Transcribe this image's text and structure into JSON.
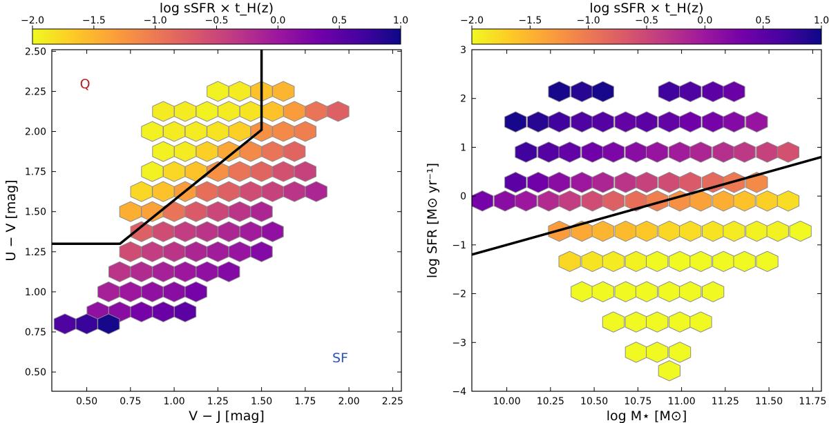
{
  "colormap": [
    "#f0f921",
    "#fdca26",
    "#fb9f3a",
    "#ed7953",
    "#d8576b",
    "#bd3786",
    "#9c179e",
    "#7201a8",
    "#46039f",
    "#0d0887"
  ],
  "chart_data": [
    {
      "type": "heatmap",
      "subtype": "hexbin",
      "id": "uvj",
      "title": "",
      "xlabel": "V − J [mag]",
      "ylabel": "U − V [mag]",
      "xlim": [
        0.3,
        2.3
      ],
      "ylim": [
        0.38,
        2.51
      ],
      "xticks": [
        0.5,
        0.75,
        1.0,
        1.25,
        1.5,
        1.75,
        2.0,
        2.25
      ],
      "xtick_labels": [
        "0.50",
        "0.75",
        "1.00",
        "1.25",
        "1.50",
        "1.75",
        "2.00",
        "2.25"
      ],
      "yticks": [
        0.5,
        0.75,
        1.0,
        1.25,
        1.5,
        1.75,
        2.0,
        2.25,
        2.5
      ],
      "ytick_labels": [
        "0.50",
        "0.75",
        "1.00",
        "1.25",
        "1.50",
        "1.75",
        "2.00",
        "2.25",
        "2.50"
      ],
      "colorbar": {
        "label": "log sSFR × t_H(z)",
        "range": [
          -2.0,
          1.0
        ],
        "ticks": [
          -2.0,
          -1.5,
          -1.0,
          -0.5,
          0.0,
          0.5,
          1.0
        ],
        "tick_labels": [
          "−2.0",
          "−1.5",
          "−1.0",
          "−0.5",
          "0.0",
          "0.5",
          "1.0"
        ]
      },
      "hex_size": [
        0.0714,
        0.0625
      ],
      "annotations": [
        {
          "text": "Q",
          "x": 0.49,
          "y": 2.27,
          "color": "#b22222"
        },
        {
          "text": "SF",
          "x": 1.95,
          "y": 0.56,
          "color": "#2a52be"
        }
      ],
      "boundary": {
        "x": [
          0.3,
          0.69,
          1.5,
          1.5
        ],
        "y": [
          1.3,
          1.3,
          2.01,
          2.51
        ]
      },
      "hexbins": [
        {
          "x": 1.25,
          "y": 2.25,
          "v": -1.95
        },
        {
          "x": 1.375,
          "y": 2.25,
          "v": -1.9
        },
        {
          "x": 1.5,
          "y": 2.25,
          "v": -1.6
        },
        {
          "x": 1.625,
          "y": 2.25,
          "v": -1.5
        },
        {
          "x": 0.938,
          "y": 2.125,
          "v": -1.9
        },
        {
          "x": 1.063,
          "y": 2.125,
          "v": -1.9
        },
        {
          "x": 1.188,
          "y": 2.125,
          "v": -1.95
        },
        {
          "x": 1.313,
          "y": 2.125,
          "v": -1.9
        },
        {
          "x": 1.438,
          "y": 2.125,
          "v": -1.85
        },
        {
          "x": 1.563,
          "y": 2.125,
          "v": -1.6
        },
        {
          "x": 1.688,
          "y": 2.125,
          "v": -1.3
        },
        {
          "x": 1.813,
          "y": 2.125,
          "v": -0.95
        },
        {
          "x": 1.938,
          "y": 2.125,
          "v": -0.75
        },
        {
          "x": 0.875,
          "y": 2.0,
          "v": -1.95
        },
        {
          "x": 1.0,
          "y": 2.0,
          "v": -1.9
        },
        {
          "x": 1.125,
          "y": 2.0,
          "v": -1.9
        },
        {
          "x": 1.25,
          "y": 2.0,
          "v": -1.85
        },
        {
          "x": 1.375,
          "y": 2.0,
          "v": -1.7
        },
        {
          "x": 1.5,
          "y": 2.0,
          "v": -1.2
        },
        {
          "x": 1.625,
          "y": 2.0,
          "v": -1.15
        },
        {
          "x": 1.75,
          "y": 2.0,
          "v": -1.05
        },
        {
          "x": 0.938,
          "y": 1.875,
          "v": -1.95
        },
        {
          "x": 1.063,
          "y": 1.875,
          "v": -1.9
        },
        {
          "x": 1.188,
          "y": 1.875,
          "v": -1.7
        },
        {
          "x": 1.313,
          "y": 1.875,
          "v": -1.4
        },
        {
          "x": 1.438,
          "y": 1.875,
          "v": -1.15
        },
        {
          "x": 1.563,
          "y": 1.875,
          "v": -0.95
        },
        {
          "x": 1.688,
          "y": 1.875,
          "v": -0.8
        },
        {
          "x": 0.875,
          "y": 1.75,
          "v": -1.95
        },
        {
          "x": 1.0,
          "y": 1.75,
          "v": -1.75
        },
        {
          "x": 1.125,
          "y": 1.75,
          "v": -1.6
        },
        {
          "x": 1.25,
          "y": 1.75,
          "v": -1.2
        },
        {
          "x": 1.375,
          "y": 1.75,
          "v": -0.95
        },
        {
          "x": 1.5,
          "y": 1.75,
          "v": -0.8
        },
        {
          "x": 1.625,
          "y": 1.75,
          "v": -0.6
        },
        {
          "x": 1.75,
          "y": 1.75,
          "v": -0.45
        },
        {
          "x": 0.813,
          "y": 1.625,
          "v": -1.75
        },
        {
          "x": 0.938,
          "y": 1.625,
          "v": -1.6
        },
        {
          "x": 1.063,
          "y": 1.625,
          "v": -1.3
        },
        {
          "x": 1.188,
          "y": 1.625,
          "v": -0.9
        },
        {
          "x": 1.313,
          "y": 1.625,
          "v": -0.75
        },
        {
          "x": 1.438,
          "y": 1.625,
          "v": -0.55
        },
        {
          "x": 1.563,
          "y": 1.625,
          "v": -0.45
        },
        {
          "x": 1.688,
          "y": 1.625,
          "v": -0.3
        },
        {
          "x": 1.813,
          "y": 1.625,
          "v": -0.15
        },
        {
          "x": 0.75,
          "y": 1.5,
          "v": -1.45
        },
        {
          "x": 0.875,
          "y": 1.5,
          "v": -1.35
        },
        {
          "x": 1.0,
          "y": 1.5,
          "v": -0.95
        },
        {
          "x": 1.125,
          "y": 1.5,
          "v": -0.7
        },
        {
          "x": 1.25,
          "y": 1.5,
          "v": -0.5
        },
        {
          "x": 1.375,
          "y": 1.5,
          "v": -0.3
        },
        {
          "x": 1.5,
          "y": 1.5,
          "v": -0.15
        },
        {
          "x": 0.813,
          "y": 1.375,
          "v": -0.75
        },
        {
          "x": 0.938,
          "y": 1.375,
          "v": -0.55
        },
        {
          "x": 1.063,
          "y": 1.375,
          "v": -0.4
        },
        {
          "x": 1.188,
          "y": 1.375,
          "v": -0.3
        },
        {
          "x": 1.313,
          "y": 1.375,
          "v": -0.15
        },
        {
          "x": 1.438,
          "y": 1.375,
          "v": -0.05
        },
        {
          "x": 1.563,
          "y": 1.375,
          "v": 0.1
        },
        {
          "x": 0.75,
          "y": 1.25,
          "v": -0.55
        },
        {
          "x": 0.875,
          "y": 1.25,
          "v": -0.4
        },
        {
          "x": 1.0,
          "y": 1.25,
          "v": -0.3
        },
        {
          "x": 1.125,
          "y": 1.25,
          "v": -0.15
        },
        {
          "x": 1.25,
          "y": 1.25,
          "v": -0.05
        },
        {
          "x": 1.375,
          "y": 1.25,
          "v": 0.05
        },
        {
          "x": 1.5,
          "y": 1.25,
          "v": 0.2
        },
        {
          "x": 0.688,
          "y": 1.125,
          "v": -0.3
        },
        {
          "x": 0.813,
          "y": 1.125,
          "v": -0.2
        },
        {
          "x": 0.938,
          "y": 1.125,
          "v": -0.1
        },
        {
          "x": 1.063,
          "y": 1.125,
          "v": 0.0
        },
        {
          "x": 1.188,
          "y": 1.125,
          "v": 0.1
        },
        {
          "x": 1.313,
          "y": 1.125,
          "v": 0.2
        },
        {
          "x": 0.625,
          "y": 1.0,
          "v": -0.1
        },
        {
          "x": 0.75,
          "y": 1.0,
          "v": 0.0
        },
        {
          "x": 0.875,
          "y": 1.0,
          "v": 0.1
        },
        {
          "x": 1.0,
          "y": 1.0,
          "v": 0.15
        },
        {
          "x": 1.125,
          "y": 1.0,
          "v": 0.3
        },
        {
          "x": 0.563,
          "y": 0.875,
          "v": 0.1
        },
        {
          "x": 0.688,
          "y": 0.875,
          "v": 0.15
        },
        {
          "x": 0.813,
          "y": 0.875,
          "v": 0.3
        },
        {
          "x": 0.938,
          "y": 0.875,
          "v": 0.4
        },
        {
          "x": 1.063,
          "y": 0.875,
          "v": 0.5
        },
        {
          "x": 0.375,
          "y": 0.8,
          "v": 0.6
        },
        {
          "x": 0.5,
          "y": 0.8,
          "v": 0.75
        },
        {
          "x": 0.625,
          "y": 0.8,
          "v": 0.95
        }
      ]
    },
    {
      "type": "heatmap",
      "subtype": "hexbin",
      "id": "sfms",
      "title": "",
      "xlabel": "log M⋆ [M⊙]",
      "ylabel": "log SFR [M⊙ yr⁻¹]",
      "xlim": [
        9.8,
        11.8
      ],
      "ylim": [
        -4.0,
        3.0
      ],
      "xticks": [
        10.0,
        10.25,
        10.5,
        10.75,
        11.0,
        11.25,
        11.5,
        11.75
      ],
      "xtick_labels": [
        "10.00",
        "10.25",
        "10.50",
        "10.75",
        "11.00",
        "11.25",
        "11.50",
        "11.75"
      ],
      "yticks": [
        -4,
        -3,
        -2,
        -1,
        0,
        1,
        2,
        3
      ],
      "ytick_labels": [
        "−4",
        "−3",
        "−2",
        "−1",
        "0",
        "1",
        "2",
        "3"
      ],
      "colorbar": {
        "label": "log sSFR × t_H(z)",
        "range": [
          -2.0,
          1.0
        ],
        "ticks": [
          -2.0,
          -1.5,
          -1.0,
          -0.5,
          0.0,
          0.5,
          1.0
        ],
        "tick_labels": [
          "−2.0",
          "−1.5",
          "−1.0",
          "−0.5",
          "0.0",
          "0.5",
          "1.0"
        ]
      },
      "hex_size": [
        0.0714,
        0.2083
      ],
      "annotations": [],
      "boundary": {
        "x": [
          9.8,
          11.8
        ],
        "y": [
          -1.2,
          0.8
        ]
      },
      "hexbins": [
        {
          "x": 10.3,
          "y": 2.14,
          "v": 0.95
        },
        {
          "x": 10.43,
          "y": 2.14,
          "v": 0.85
        },
        {
          "x": 10.55,
          "y": 2.14,
          "v": 0.95
        },
        {
          "x": 10.93,
          "y": 2.14,
          "v": 0.7
        },
        {
          "x": 11.05,
          "y": 2.14,
          "v": 0.6
        },
        {
          "x": 11.18,
          "y": 2.14,
          "v": 0.5
        },
        {
          "x": 11.3,
          "y": 2.14,
          "v": 0.4
        },
        {
          "x": 10.05,
          "y": 1.52,
          "v": 0.95
        },
        {
          "x": 10.18,
          "y": 1.52,
          "v": 0.85
        },
        {
          "x": 10.3,
          "y": 1.52,
          "v": 0.7
        },
        {
          "x": 10.43,
          "y": 1.52,
          "v": 0.6
        },
        {
          "x": 10.55,
          "y": 1.52,
          "v": 0.55
        },
        {
          "x": 10.68,
          "y": 1.52,
          "v": 0.45
        },
        {
          "x": 10.8,
          "y": 1.52,
          "v": 0.5
        },
        {
          "x": 10.93,
          "y": 1.52,
          "v": 0.45
        },
        {
          "x": 11.05,
          "y": 1.52,
          "v": 0.35
        },
        {
          "x": 11.18,
          "y": 1.52,
          "v": 0.3
        },
        {
          "x": 11.3,
          "y": 1.52,
          "v": 0.2
        },
        {
          "x": 11.43,
          "y": 1.52,
          "v": 0.05
        },
        {
          "x": 10.11,
          "y": 0.9,
          "v": 0.7
        },
        {
          "x": 10.24,
          "y": 0.9,
          "v": 0.55
        },
        {
          "x": 10.36,
          "y": 0.9,
          "v": 0.45
        },
        {
          "x": 10.49,
          "y": 0.9,
          "v": 0.35
        },
        {
          "x": 10.61,
          "y": 0.9,
          "v": 0.25
        },
        {
          "x": 10.74,
          "y": 0.9,
          "v": 0.15
        },
        {
          "x": 10.86,
          "y": 0.9,
          "v": 0.05
        },
        {
          "x": 10.99,
          "y": 0.9,
          "v": -0.05
        },
        {
          "x": 11.11,
          "y": 0.9,
          "v": -0.15
        },
        {
          "x": 11.24,
          "y": 0.9,
          "v": -0.25
        },
        {
          "x": 11.36,
          "y": 0.9,
          "v": -0.35
        },
        {
          "x": 11.49,
          "y": 0.9,
          "v": -0.45
        },
        {
          "x": 11.61,
          "y": 0.9,
          "v": -0.6
        },
        {
          "x": 10.05,
          "y": 0.28,
          "v": 0.5
        },
        {
          "x": 10.18,
          "y": 0.28,
          "v": 0.35
        },
        {
          "x": 10.3,
          "y": 0.28,
          "v": 0.15
        },
        {
          "x": 10.43,
          "y": 0.28,
          "v": 0.0
        },
        {
          "x": 10.55,
          "y": 0.28,
          "v": -0.15
        },
        {
          "x": 10.68,
          "y": 0.28,
          "v": -0.3
        },
        {
          "x": 10.8,
          "y": 0.28,
          "v": -0.45
        },
        {
          "x": 10.93,
          "y": 0.28,
          "v": -0.55
        },
        {
          "x": 11.05,
          "y": 0.28,
          "v": -0.7
        },
        {
          "x": 11.18,
          "y": 0.28,
          "v": -0.85
        },
        {
          "x": 11.3,
          "y": 0.28,
          "v": -1.0
        },
        {
          "x": 11.43,
          "y": 0.28,
          "v": -1.15
        },
        {
          "x": 9.86,
          "y": -0.1,
          "v": 0.3
        },
        {
          "x": 9.99,
          "y": -0.1,
          "v": 0.15
        },
        {
          "x": 10.11,
          "y": -0.1,
          "v": 0.0
        },
        {
          "x": 10.24,
          "y": -0.1,
          "v": -0.2
        },
        {
          "x": 10.36,
          "y": -0.1,
          "v": -0.4
        },
        {
          "x": 10.49,
          "y": -0.1,
          "v": -0.55
        },
        {
          "x": 10.61,
          "y": -0.1,
          "v": -0.75
        },
        {
          "x": 10.74,
          "y": -0.1,
          "v": -0.9
        },
        {
          "x": 10.86,
          "y": -0.1,
          "v": -1.05
        },
        {
          "x": 10.99,
          "y": -0.1,
          "v": -1.2
        },
        {
          "x": 11.11,
          "y": -0.1,
          "v": -1.35
        },
        {
          "x": 11.24,
          "y": -0.1,
          "v": -1.45
        },
        {
          "x": 11.36,
          "y": -0.1,
          "v": -1.6
        },
        {
          "x": 11.49,
          "y": -0.1,
          "v": -1.7
        },
        {
          "x": 11.61,
          "y": -0.1,
          "v": -1.8
        },
        {
          "x": 10.3,
          "y": -0.72,
          "v": -1.3
        },
        {
          "x": 10.43,
          "y": -0.72,
          "v": -1.4
        },
        {
          "x": 10.55,
          "y": -0.72,
          "v": -1.5
        },
        {
          "x": 10.68,
          "y": -0.72,
          "v": -1.55
        },
        {
          "x": 10.8,
          "y": -0.72,
          "v": -1.65
        },
        {
          "x": 10.93,
          "y": -0.72,
          "v": -1.75
        },
        {
          "x": 11.05,
          "y": -0.72,
          "v": -1.8
        },
        {
          "x": 11.18,
          "y": -0.72,
          "v": -1.85
        },
        {
          "x": 11.3,
          "y": -0.72,
          "v": -1.9
        },
        {
          "x": 11.43,
          "y": -0.72,
          "v": -1.95
        },
        {
          "x": 11.55,
          "y": -0.72,
          "v": -1.95
        },
        {
          "x": 11.68,
          "y": -0.72,
          "v": -2.0
        },
        {
          "x": 10.36,
          "y": -1.34,
          "v": -1.75
        },
        {
          "x": 10.49,
          "y": -1.34,
          "v": -1.85
        },
        {
          "x": 10.61,
          "y": -1.34,
          "v": -1.9
        },
        {
          "x": 10.74,
          "y": -1.34,
          "v": -1.95
        },
        {
          "x": 10.86,
          "y": -1.34,
          "v": -2.0
        },
        {
          "x": 10.99,
          "y": -1.34,
          "v": -2.0
        },
        {
          "x": 11.11,
          "y": -1.34,
          "v": -2.0
        },
        {
          "x": 11.24,
          "y": -1.34,
          "v": -2.0
        },
        {
          "x": 11.36,
          "y": -1.34,
          "v": -2.0
        },
        {
          "x": 11.49,
          "y": -1.34,
          "v": -2.0
        },
        {
          "x": 10.43,
          "y": -1.96,
          "v": -2.0
        },
        {
          "x": 10.55,
          "y": -1.96,
          "v": -2.0
        },
        {
          "x": 10.68,
          "y": -1.96,
          "v": -2.0
        },
        {
          "x": 10.8,
          "y": -1.96,
          "v": -2.0
        },
        {
          "x": 10.93,
          "y": -1.96,
          "v": -2.0
        },
        {
          "x": 11.05,
          "y": -1.96,
          "v": -2.0
        },
        {
          "x": 11.18,
          "y": -1.96,
          "v": -2.0
        },
        {
          "x": 10.61,
          "y": -2.58,
          "v": -2.0
        },
        {
          "x": 10.74,
          "y": -2.58,
          "v": -2.0
        },
        {
          "x": 10.86,
          "y": -2.58,
          "v": -2.0
        },
        {
          "x": 10.99,
          "y": -2.58,
          "v": -2.0
        },
        {
          "x": 11.11,
          "y": -2.58,
          "v": -2.0
        },
        {
          "x": 10.74,
          "y": -3.2,
          "v": -2.0
        },
        {
          "x": 10.86,
          "y": -3.2,
          "v": -2.0
        },
        {
          "x": 10.99,
          "y": -3.2,
          "v": -2.0
        },
        {
          "x": 10.93,
          "y": -3.58,
          "v": -2.0
        }
      ]
    }
  ]
}
